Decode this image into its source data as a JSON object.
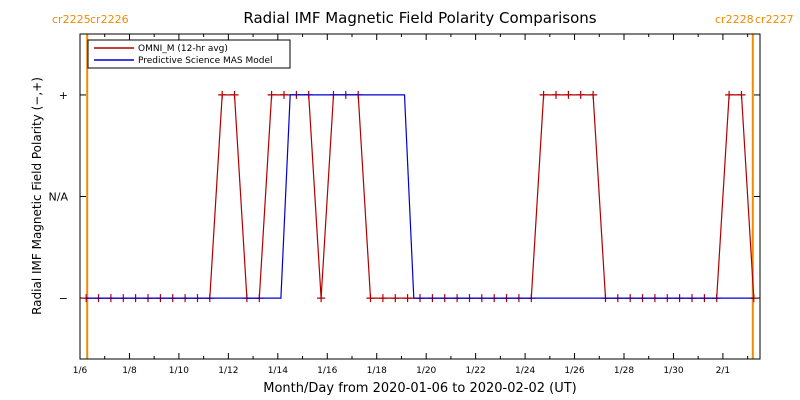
{
  "chart_data": {
    "type": "line",
    "title": "Radial IMF Magnetic Field Polarity Comparisons",
    "xlabel": "Month/Day from 2020-01-06 to 2020-02-02 (UT)",
    "ylabel": "Radial IMF Magnetic Field Polarity (−,+)",
    "x_range": [
      "2020-01-06 00:00",
      "2020-02-02 12:00"
    ],
    "y_levels": [
      "−",
      "N/A",
      "+"
    ],
    "ylim": [
      -1.6,
      1.6
    ],
    "x_tick_labels": [
      "1/6",
      "1/8",
      "1/10",
      "1/12",
      "1/14",
      "1/16",
      "1/18",
      "1/20",
      "1/22",
      "1/24",
      "1/26",
      "1/28",
      "1/30",
      "2/1"
    ],
    "y_tick_labels": [
      "+",
      "N/A",
      "−"
    ],
    "carrington_left": [
      "cr2225",
      "cr2226"
    ],
    "carrington_right": [
      "cr2228",
      "cr2227"
    ],
    "carrington_line_color": "#f08c00",
    "legend": {
      "position": "top-left"
    },
    "series": [
      {
        "name": "OMNI_M (12-hr avg)",
        "color": "#b00000",
        "marker": "plus",
        "points": [
          [
            "2020-01-06 06:00",
            -1
          ],
          [
            "2020-01-06 18:00",
            -1
          ],
          [
            "2020-01-07 06:00",
            -1
          ],
          [
            "2020-01-07 18:00",
            -1
          ],
          [
            "2020-01-08 06:00",
            -1
          ],
          [
            "2020-01-08 18:00",
            -1
          ],
          [
            "2020-01-09 06:00",
            -1
          ],
          [
            "2020-01-09 18:00",
            -1
          ],
          [
            "2020-01-10 06:00",
            -1
          ],
          [
            "2020-01-10 18:00",
            -1
          ],
          [
            "2020-01-11 06:00",
            -1
          ],
          [
            "2020-01-11 18:00",
            1
          ],
          [
            "2020-01-12 06:00",
            1
          ],
          [
            "2020-01-12 18:00",
            -1
          ],
          [
            "2020-01-13 06:00",
            -1
          ],
          [
            "2020-01-13 18:00",
            1
          ],
          [
            "2020-01-14 06:00",
            1
          ],
          [
            "2020-01-14 18:00",
            1
          ],
          [
            "2020-01-15 06:00",
            1
          ],
          [
            "2020-01-15 18:00",
            -1
          ],
          [
            "2020-01-16 06:00",
            1
          ],
          [
            "2020-01-16 18:00",
            1
          ],
          [
            "2020-01-17 06:00",
            1
          ],
          [
            "2020-01-17 18:00",
            -1
          ],
          [
            "2020-01-18 06:00",
            -1
          ],
          [
            "2020-01-18 18:00",
            -1
          ],
          [
            "2020-01-19 06:00",
            -1
          ],
          [
            "2020-01-19 18:00",
            -1
          ],
          [
            "2020-01-20 06:00",
            -1
          ],
          [
            "2020-01-20 18:00",
            -1
          ],
          [
            "2020-01-21 06:00",
            -1
          ],
          [
            "2020-01-21 18:00",
            -1
          ],
          [
            "2020-01-22 06:00",
            -1
          ],
          [
            "2020-01-22 18:00",
            -1
          ],
          [
            "2020-01-23 06:00",
            -1
          ],
          [
            "2020-01-23 18:00",
            -1
          ],
          [
            "2020-01-24 06:00",
            -1
          ],
          [
            "2020-01-24 18:00",
            1
          ],
          [
            "2020-01-25 06:00",
            1
          ],
          [
            "2020-01-25 18:00",
            1
          ],
          [
            "2020-01-26 06:00",
            1
          ],
          [
            "2020-01-26 18:00",
            1
          ],
          [
            "2020-01-27 06:00",
            -1
          ],
          [
            "2020-01-27 18:00",
            -1
          ],
          [
            "2020-01-28 06:00",
            -1
          ],
          [
            "2020-01-28 18:00",
            -1
          ],
          [
            "2020-01-29 06:00",
            -1
          ],
          [
            "2020-01-29 18:00",
            -1
          ],
          [
            "2020-01-30 06:00",
            -1
          ],
          [
            "2020-01-30 18:00",
            -1
          ],
          [
            "2020-01-31 06:00",
            -1
          ],
          [
            "2020-01-31 18:00",
            -1
          ],
          [
            "2020-02-01 06:00",
            1
          ],
          [
            "2020-02-01 18:00",
            1
          ],
          [
            "2020-02-02 06:00",
            -1
          ]
        ]
      },
      {
        "name": "Predictive Science MAS Model",
        "color": "#0000d0",
        "marker": "none",
        "points": [
          [
            "2020-01-06 06:00",
            -1
          ],
          [
            "2020-01-14 03:00",
            -1
          ],
          [
            "2020-01-14 12:00",
            1
          ],
          [
            "2020-01-19 03:00",
            1
          ],
          [
            "2020-01-19 12:00",
            -1
          ],
          [
            "2020-02-02 06:00",
            -1
          ]
        ]
      }
    ]
  }
}
